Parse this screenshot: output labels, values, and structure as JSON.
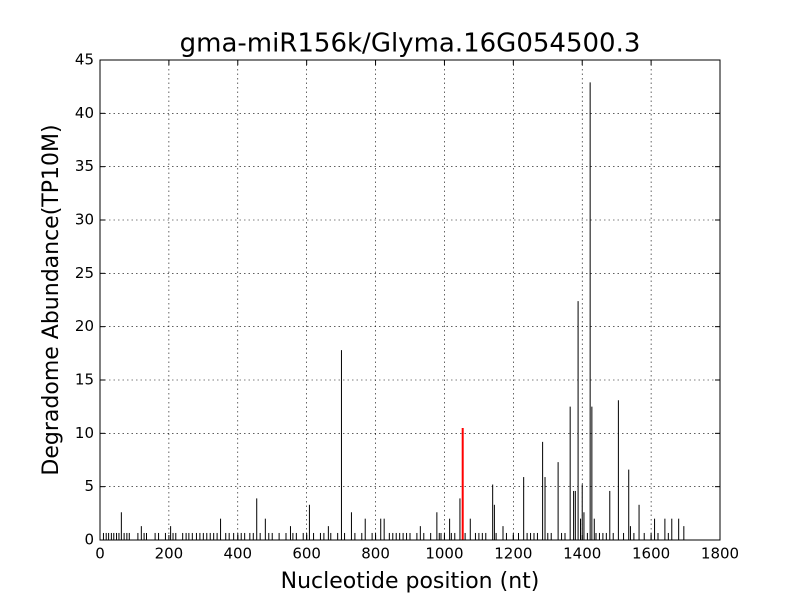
{
  "chart_data": {
    "type": "stem",
    "title": "gma-miR156k/Glyma.16G054500.3",
    "x_label": "Nucleotide position (nt)",
    "y_label": "Degradome Abundance(TP10M)",
    "xlim": [
      0,
      1800
    ],
    "xticks": [
      0,
      200,
      400,
      600,
      800,
      1000,
      1200,
      1400,
      1600,
      1800
    ],
    "ylim": [
      0,
      45
    ],
    "yticks": [
      0,
      5,
      10,
      15,
      20,
      25,
      30,
      35,
      40,
      45
    ],
    "grid": true,
    "series": [
      {
        "color": "#000000",
        "x": [
          10,
          18,
          25,
          33,
          40,
          48,
          55,
          70,
          78,
          85,
          110,
          128,
          135,
          160,
          170,
          190,
          212,
          220,
          240,
          250,
          258,
          268,
          280,
          290,
          300,
          310,
          320,
          330,
          340,
          365,
          375,
          388,
          400,
          410,
          420,
          435,
          445,
          465,
          490,
          500,
          520,
          540,
          560,
          570,
          590,
          600,
          620,
          640,
          650,
          670,
          690,
          710,
          740,
          760,
          790,
          800,
          840,
          850,
          860,
          870,
          880,
          890,
          900,
          920,
          940,
          960,
          985,
          990,
          1000,
          1020,
          1030,
          1060,
          1090,
          1100,
          1110,
          1120,
          1150,
          1180,
          1200,
          1215,
          1240,
          1250,
          1260,
          1270,
          1300,
          1310,
          1340,
          1350,
          1415,
          1440,
          1450,
          1460,
          1470,
          1490,
          1520,
          1550,
          1580,
          1600,
          1620,
          1650
        ],
        "values": [
          0.66,
          0.66,
          0.66,
          0.66,
          0.66,
          0.66,
          0.66,
          0.66,
          0.66,
          0.66,
          0.66,
          0.66,
          0.66,
          0.66,
          0.66,
          0.66,
          0.66,
          0.66,
          0.66,
          0.66,
          0.66,
          0.66,
          0.66,
          0.66,
          0.66,
          0.66,
          0.66,
          0.66,
          0.66,
          0.66,
          0.66,
          0.66,
          0.66,
          0.66,
          0.66,
          0.66,
          0.66,
          0.66,
          0.66,
          0.66,
          0.66,
          0.66,
          0.66,
          0.66,
          0.66,
          0.66,
          0.66,
          0.66,
          0.66,
          0.66,
          0.66,
          0.66,
          0.66,
          0.66,
          0.66,
          0.66,
          0.66,
          0.66,
          0.66,
          0.66,
          0.66,
          0.66,
          0.66,
          0.66,
          0.66,
          0.66,
          0.66,
          0.66,
          0.66,
          0.66,
          0.66,
          0.66,
          0.66,
          0.66,
          0.66,
          0.66,
          0.66,
          0.66,
          0.66,
          0.66,
          0.66,
          0.66,
          0.66,
          0.66,
          0.66,
          0.66,
          0.66,
          0.66,
          0.66,
          0.66,
          0.66,
          0.66,
          0.66,
          0.66,
          0.66,
          0.66,
          0.66,
          0.66,
          0.66,
          0.66
        ]
      },
      {
        "color": "#000000",
        "x": [
          62,
          120,
          205,
          350,
          455,
          480,
          553,
          608,
          663,
          701,
          730,
          770,
          815,
          825,
          930,
          978,
          1015,
          1045,
          1075,
          1140,
          1145,
          1170,
          1230,
          1285,
          1292,
          1330,
          1365,
          1375,
          1380,
          1388,
          1395,
          1400,
          1405,
          1423,
          1428,
          1435,
          1480,
          1505,
          1535,
          1540,
          1565,
          1610,
          1640,
          1660,
          1680,
          1695
        ],
        "values": [
          2.6,
          1.3,
          1.3,
          2.0,
          3.9,
          2.0,
          1.3,
          3.3,
          1.3,
          17.8,
          2.6,
          2.0,
          2.0,
          2.0,
          1.3,
          2.6,
          2.0,
          3.9,
          2.0,
          5.2,
          3.3,
          1.3,
          5.9,
          9.2,
          5.9,
          7.3,
          12.5,
          4.6,
          4.6,
          22.4,
          2.0,
          5.2,
          2.6,
          42.9,
          12.5,
          2.0,
          4.6,
          13.1,
          6.6,
          1.3,
          3.3,
          2.0,
          2.0,
          2.0,
          2.0,
          1.3
        ]
      },
      {
        "color": "#ff0000",
        "x": [
          1053
        ],
        "values": [
          10.5
        ]
      }
    ]
  }
}
